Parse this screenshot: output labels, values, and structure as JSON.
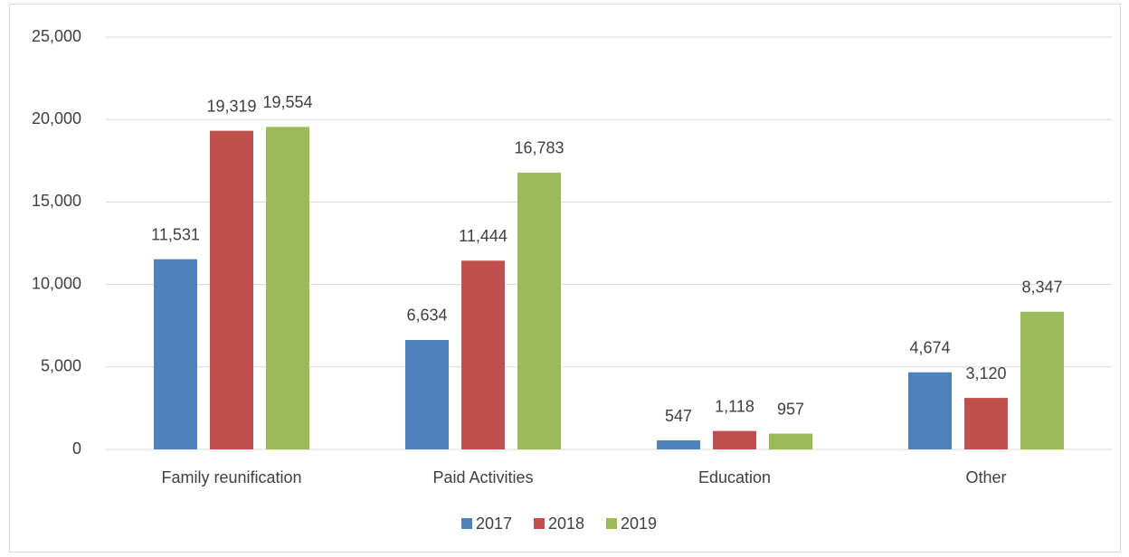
{
  "chart_data": {
    "type": "bar",
    "categories": [
      "Family reunification",
      "Paid Activities",
      "Education",
      "Other"
    ],
    "series": [
      {
        "name": "2017",
        "color": "#4f81bd",
        "values": [
          11531,
          6634,
          547,
          4674
        ],
        "value_labels": [
          "11,531",
          "6,634",
          "547",
          "4,674"
        ]
      },
      {
        "name": "2018",
        "color": "#c0504d",
        "values": [
          19319,
          11444,
          1118,
          3120
        ],
        "value_labels": [
          "19,319",
          "11,444",
          "1,118",
          "3,120"
        ]
      },
      {
        "name": "2019",
        "color": "#9bbb59",
        "values": [
          19554,
          16783,
          957,
          8347
        ],
        "value_labels": [
          "19,554",
          "16,783",
          "957",
          "8,347"
        ]
      }
    ],
    "ylim": [
      0,
      25000
    ],
    "yticks": [
      0,
      {
        "value": 5000,
        "label": "5,000"
      },
      {
        "value": 10000,
        "label": "10,000"
      },
      {
        "value": 15000,
        "label": "15,000"
      },
      {
        "value": 20000,
        "label": "20,000"
      },
      {
        "value": 25000,
        "label": "25,000"
      }
    ],
    "grid": true,
    "legend": "bottom"
  }
}
